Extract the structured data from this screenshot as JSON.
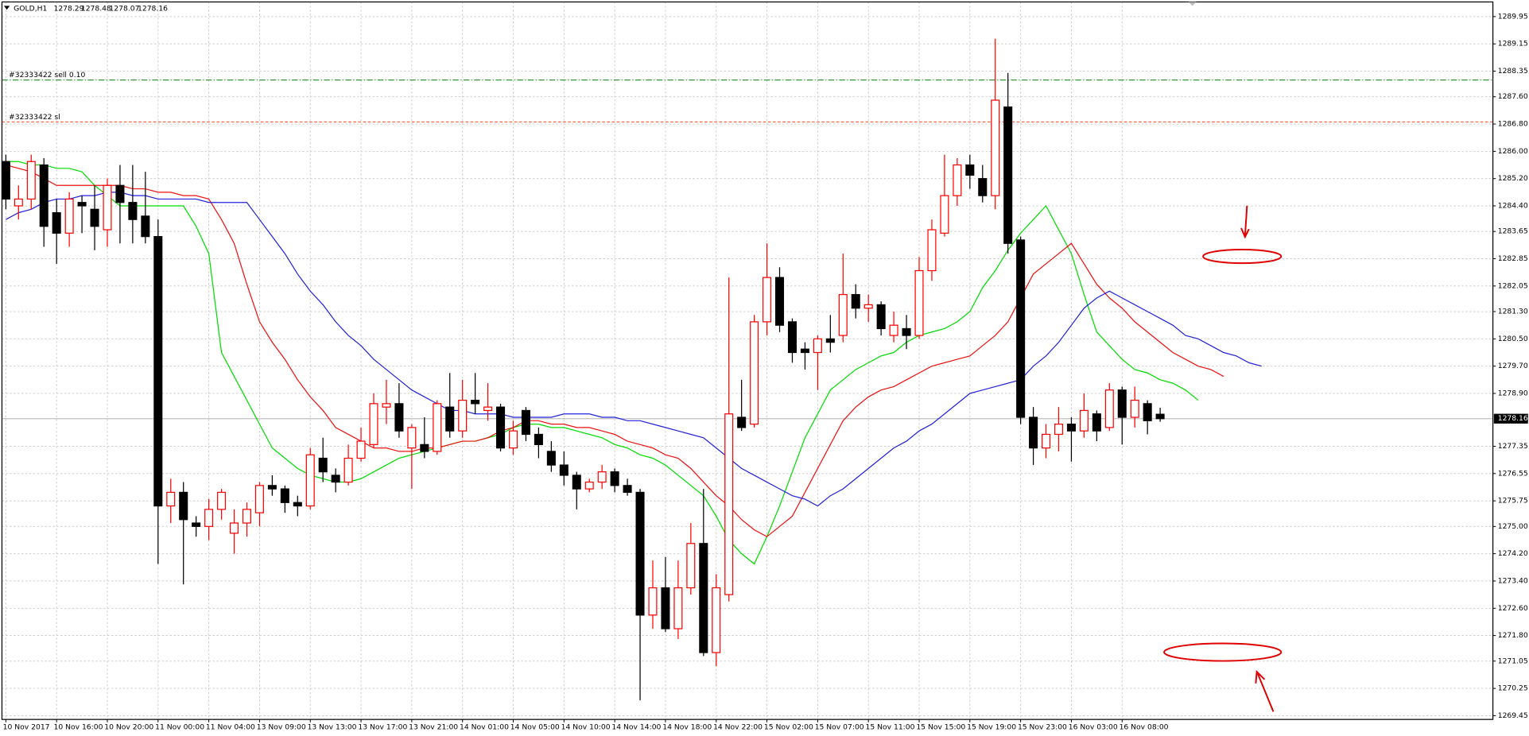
{
  "chart_data": {
    "type": "candlestick",
    "title": "GOLD,H1",
    "categories": [
      "10 Nov 2017",
      null,
      null,
      null,
      "10 Nov 16:00",
      null,
      null,
      null,
      "10 Nov 20:00",
      null,
      null,
      null,
      "11 Nov 00:00",
      null,
      null,
      null,
      "11 Nov 04:00",
      null,
      null,
      null,
      "13 Nov 09:00",
      null,
      null,
      null,
      "13 Nov 13:00",
      null,
      null,
      null,
      "13 Nov 17:00",
      null,
      null,
      null,
      "13 Nov 21:00",
      null,
      null,
      null,
      "14 Nov 01:00",
      null,
      null,
      null,
      "14 Nov 05:00",
      null,
      null,
      null,
      "14 Nov 10:00",
      null,
      null,
      null,
      "14 Nov 14:00",
      null,
      null,
      null,
      "14 Nov 18:00",
      null,
      null,
      null,
      "14 Nov 22:00",
      null,
      null,
      null,
      "15 Nov 02:00",
      null,
      null,
      null,
      "15 Nov 07:00",
      null,
      null,
      null,
      "15 Nov 11:00",
      null,
      null,
      null,
      "15 Nov 15:00",
      null,
      null,
      null,
      "15 Nov 19:00",
      null,
      null,
      null,
      "15 Nov 23:00",
      null,
      null,
      null,
      "16 Nov 03:00",
      null,
      null,
      null,
      "16 Nov 08:00",
      null,
      null,
      null,
      null,
      null,
      null,
      null,
      null,
      null,
      null,
      null
    ],
    "open": [
      1285.7,
      1284.4,
      1284.6,
      1285.6,
      1284.2,
      1283.6,
      1284.5,
      1284.3,
      1283.7,
      1285.0,
      1284.5,
      1284.1,
      1283.5,
      1275.6,
      1276.0,
      1275.1,
      1275.0,
      1275.5,
      1274.8,
      1275.1,
      1275.4,
      1276.2,
      1276.1,
      1275.7,
      1275.6,
      1277.0,
      1276.5,
      1276.3,
      1277.0,
      1277.4,
      1278.5,
      1278.6,
      1277.3,
      1277.4,
      1277.2,
      1278.5,
      1277.8,
      1278.7,
      1278.4,
      1278.5,
      1277.3,
      1278.4,
      1277.7,
      1277.2,
      1276.8,
      1276.5,
      1276.1,
      1276.3,
      1276.6,
      1276.2,
      1276.0,
      1272.4,
      1273.2,
      1272.0,
      1273.2,
      1274.5,
      1271.3,
      1273.0,
      1278.2,
      1278.0,
      1281.0,
      1282.3,
      1281.0,
      1280.2,
      1280.1,
      1280.5,
      1280.6,
      1281.8,
      1281.4,
      1281.5,
      1280.6,
      1280.8,
      1280.6,
      1282.5,
      1283.6,
      1284.7,
      1285.6,
      1285.2,
      1284.7,
      1287.3,
      1283.4,
      1278.2,
      1277.3,
      1277.7,
      1278.0,
      1277.8,
      1278.3,
      1277.9,
      1279.0,
      1278.2,
      1278.6,
      1278.29,
      null,
      null,
      null,
      null,
      null,
      null,
      null,
      null
    ],
    "high": [
      1285.9,
      1285.0,
      1285.9,
      1285.8,
      1284.6,
      1284.8,
      1284.7,
      1285.0,
      1285.2,
      1285.6,
      1285.6,
      1285.4,
      1284.0,
      1276.4,
      1276.3,
      1275.3,
      1275.8,
      1276.1,
      1275.5,
      1275.7,
      1276.3,
      1276.5,
      1276.2,
      1275.9,
      1277.3,
      1277.6,
      1276.7,
      1277.4,
      1277.9,
      1278.9,
      1279.3,
      1279.2,
      1278.0,
      1278.2,
      1278.7,
      1279.5,
      1279.3,
      1279.5,
      1279.2,
      1278.6,
      1278.1,
      1278.5,
      1277.9,
      1277.5,
      1277.2,
      1276.6,
      1276.4,
      1276.8,
      1276.7,
      1276.4,
      1276.1,
      1274.0,
      1274.1,
      1274.0,
      1275.1,
      1276.1,
      1273.6,
      1282.3,
      1279.3,
      1281.2,
      1283.3,
      1282.6,
      1281.1,
      1280.4,
      1280.6,
      1281.2,
      1283.0,
      1282.1,
      1281.8,
      1281.6,
      1281.3,
      1281.2,
      1282.9,
      1284.0,
      1285.9,
      1285.8,
      1285.9,
      1285.6,
      1289.3,
      1288.3,
      1283.5,
      1278.5,
      1278.0,
      1278.5,
      1278.2,
      1278.9,
      1278.4,
      1279.2,
      1279.1,
      1279.1,
      1278.7,
      1278.48,
      null,
      null,
      null,
      null,
      null,
      null,
      null,
      null
    ],
    "low": [
      1284.3,
      1284.0,
      1284.3,
      1283.2,
      1282.7,
      1283.2,
      1283.6,
      1283.1,
      1283.2,
      1283.3,
      1283.3,
      1283.3,
      1273.9,
      1275.1,
      1273.3,
      1274.7,
      1274.6,
      1275.2,
      1274.2,
      1274.7,
      1275.0,
      1275.9,
      1275.4,
      1275.3,
      1275.5,
      1276.3,
      1276.0,
      1276.2,
      1276.9,
      1277.3,
      1278.0,
      1277.6,
      1276.1,
      1277.0,
      1277.1,
      1277.6,
      1277.6,
      1278.3,
      1278.1,
      1277.2,
      1277.1,
      1277.5,
      1277.0,
      1276.6,
      1276.2,
      1275.5,
      1276.0,
      1276.1,
      1276.0,
      1275.9,
      1269.9,
      1272.0,
      1271.9,
      1271.7,
      1273.0,
      1271.2,
      1270.9,
      1272.8,
      1277.8,
      1277.9,
      1280.6,
      1280.7,
      1279.8,
      1279.6,
      1279.0,
      1280.1,
      1280.4,
      1281.1,
      1281.0,
      1280.6,
      1280.4,
      1280.2,
      1280.5,
      1282.2,
      1283.5,
      1284.4,
      1284.9,
      1284.5,
      1284.3,
      1283.0,
      1278.0,
      1276.8,
      1277.0,
      1277.2,
      1276.9,
      1277.6,
      1277.5,
      1277.8,
      1277.4,
      1277.9,
      1277.7,
      1278.07,
      null,
      null,
      null,
      null,
      null,
      null,
      null,
      null
    ],
    "close": [
      1284.6,
      1284.6,
      1285.7,
      1283.8,
      1283.6,
      1284.6,
      1284.4,
      1283.8,
      1285.0,
      1284.5,
      1284.0,
      1283.5,
      1275.6,
      1276.0,
      1275.2,
      1275.0,
      1275.5,
      1276.0,
      1275.1,
      1275.5,
      1276.2,
      1276.1,
      1275.7,
      1275.6,
      1277.1,
      1276.6,
      1276.3,
      1277.0,
      1277.5,
      1278.6,
      1278.6,
      1277.8,
      1277.9,
      1277.2,
      1278.6,
      1277.8,
      1278.7,
      1278.6,
      1278.5,
      1277.3,
      1277.8,
      1277.7,
      1277.4,
      1276.8,
      1276.5,
      1276.1,
      1276.3,
      1276.6,
      1276.2,
      1276.0,
      1272.4,
      1273.2,
      1272.0,
      1273.2,
      1274.5,
      1271.3,
      1273.2,
      1278.3,
      1277.9,
      1281.0,
      1282.3,
      1280.9,
      1280.1,
      1280.1,
      1280.5,
      1280.4,
      1281.8,
      1281.4,
      1281.5,
      1280.8,
      1280.9,
      1280.6,
      1282.5,
      1283.7,
      1284.7,
      1285.6,
      1285.3,
      1284.7,
      1287.5,
      1283.3,
      1278.2,
      1277.3,
      1277.7,
      1278.0,
      1277.8,
      1278.4,
      1277.8,
      1279.0,
      1278.2,
      1278.7,
      1278.1,
      1278.16,
      null,
      null,
      null,
      null,
      null,
      null,
      null,
      null
    ],
    "up_color": "#ff0000",
    "down_color": "#000000",
    "series": [
      {
        "color": "#00dd00",
        "values": [
          1285.7,
          1285.7,
          1285.6,
          1285.6,
          1285.5,
          1285.5,
          1285.4,
          1285.0,
          1284.7,
          1284.4,
          1284.4,
          1284.4,
          1284.4,
          1284.4,
          1284.4,
          1283.8,
          1283.0,
          1280.1,
          1279.4,
          1278.7,
          1278.0,
          1277.3,
          1277.0,
          1276.7,
          1276.5,
          1276.4,
          1276.3,
          1276.3,
          1276.4,
          1276.6,
          1276.8,
          1277.0,
          1277.1,
          1277.2,
          1277.3,
          1277.4,
          1277.5,
          1277.5,
          1277.6,
          1277.7,
          1277.9,
          1278.0,
          1278.0,
          1277.9,
          1277.9,
          1277.8,
          1277.7,
          1277.6,
          1277.4,
          1277.3,
          1277.1,
          1277.0,
          1276.8,
          1276.5,
          1276.2,
          1275.9,
          1275.3,
          1274.6,
          1274.2,
          1273.9,
          1274.7,
          1275.6,
          1276.6,
          1277.6,
          1278.3,
          1279.0,
          1279.3,
          1279.6,
          1279.8,
          1280.0,
          1280.1,
          1280.4,
          1280.6,
          1280.7,
          1280.8,
          1281.0,
          1281.3,
          1282.0,
          1282.5,
          1283.1,
          1283.6,
          1284.0,
          1284.4,
          1283.7,
          1283.0,
          1281.8,
          1280.7,
          1280.3,
          1279.9,
          1279.6,
          1279.5,
          1279.3,
          1279.2,
          1279.0,
          1278.7,
          null,
          null,
          null,
          null,
          null
        ]
      },
      {
        "color": "#ee1111",
        "values": [
          1285.6,
          1285.5,
          1285.4,
          1285.2,
          1285.0,
          1285.0,
          1285.0,
          1285.0,
          1285.0,
          1285.0,
          1284.9,
          1284.9,
          1284.8,
          1284.8,
          1284.7,
          1284.7,
          1284.6,
          1284.0,
          1283.3,
          1282.1,
          1281.0,
          1280.4,
          1279.9,
          1279.3,
          1278.8,
          1278.4,
          1277.9,
          1277.7,
          1277.5,
          1277.3,
          1277.3,
          1277.2,
          1277.2,
          1277.3,
          1277.3,
          1277.4,
          1277.5,
          1277.5,
          1277.6,
          1277.8,
          1277.9,
          1278.1,
          1278.1,
          1278.0,
          1278.0,
          1277.9,
          1277.9,
          1277.8,
          1277.7,
          1277.5,
          1277.4,
          1277.3,
          1277.1,
          1277.0,
          1276.7,
          1276.3,
          1275.9,
          1275.6,
          1275.2,
          1274.9,
          1274.7,
          1275.0,
          1275.3,
          1276.0,
          1276.7,
          1277.4,
          1278.1,
          1278.5,
          1278.8,
          1279.0,
          1279.1,
          1279.3,
          1279.5,
          1279.7,
          1279.8,
          1279.9,
          1280.0,
          1280.3,
          1280.6,
          1281.0,
          1281.7,
          1282.4,
          1282.7,
          1283.0,
          1283.3,
          1282.7,
          1282.1,
          1281.7,
          1281.4,
          1281.0,
          1280.7,
          1280.4,
          1280.1,
          1279.9,
          1279.7,
          1279.6,
          1279.4,
          null,
          null,
          null
        ]
      },
      {
        "color": "#2222dd",
        "values": [
          1284.0,
          1284.2,
          1284.3,
          1284.5,
          1284.6,
          1284.6,
          1284.7,
          1284.7,
          1284.8,
          1284.8,
          1284.7,
          1284.7,
          1284.6,
          1284.6,
          1284.6,
          1284.6,
          1284.5,
          1284.5,
          1284.5,
          1284.5,
          1284.0,
          1283.5,
          1283.0,
          1282.4,
          1281.9,
          1281.5,
          1281.0,
          1280.6,
          1280.3,
          1279.9,
          1279.6,
          1279.3,
          1279.0,
          1278.8,
          1278.6,
          1278.4,
          1278.4,
          1278.3,
          1278.3,
          1278.3,
          1278.2,
          1278.2,
          1278.2,
          1278.2,
          1278.3,
          1278.3,
          1278.3,
          1278.2,
          1278.2,
          1278.1,
          1278.1,
          1278.0,
          1277.9,
          1277.8,
          1277.7,
          1277.6,
          1277.3,
          1277.0,
          1276.7,
          1276.5,
          1276.3,
          1276.1,
          1275.9,
          1275.8,
          1275.6,
          1275.9,
          1276.1,
          1276.4,
          1276.7,
          1277.0,
          1277.3,
          1277.5,
          1277.8,
          1278.0,
          1278.3,
          1278.6,
          1278.9,
          1279.0,
          1279.1,
          1279.2,
          1279.3,
          1279.7,
          1280.0,
          1280.4,
          1280.9,
          1281.4,
          1281.7,
          1281.9,
          1281.7,
          1281.5,
          1281.3,
          1281.1,
          1280.9,
          1280.6,
          1280.5,
          1280.3,
          1280.1,
          1280.0,
          1279.8,
          1279.7
        ]
      }
    ],
    "orders": [
      {
        "label": "#32333422 sell 0.10",
        "price": 1288.09,
        "color": "#228b22"
      },
      {
        "label": "#32333422 sl",
        "price": 1286.86,
        "color": "#ff5a3c"
      }
    ],
    "ylim": [
      1269.34,
      1290.38
    ],
    "yticks": [
      1289.95,
      1289.15,
      1288.35,
      {
        "value": 1287.6,
        "label": "1287.60"
      },
      {
        "value": 1286.8,
        "label": "1286.80"
      },
      {
        "value": 1286,
        "label": "1286.00"
      },
      {
        "value": 1285.2,
        "label": "1285.20"
      },
      {
        "value": 1284.4,
        "label": "1284.40"
      },
      1283.65,
      1282.85,
      1282.05,
      {
        "value": 1281.3,
        "label": "1281.30"
      },
      {
        "value": 1280.5,
        "label": "1280.50"
      },
      {
        "value": 1279.7,
        "label": "1279.70"
      },
      {
        "value": 1278.9,
        "label": "1278.90"
      },
      1277.35,
      1276.55,
      1275.75,
      {
        "value": 1275,
        "label": "1275.00"
      },
      {
        "value": 1274.2,
        "label": "1274.20"
      },
      {
        "value": 1273.4,
        "label": "1273.40"
      },
      {
        "value": 1272.6,
        "label": "1272.60"
      },
      {
        "value": 1271.8,
        "label": "1271.80"
      },
      1271.05,
      1270.25,
      1269.45
    ],
    "grid": true
  }
}
